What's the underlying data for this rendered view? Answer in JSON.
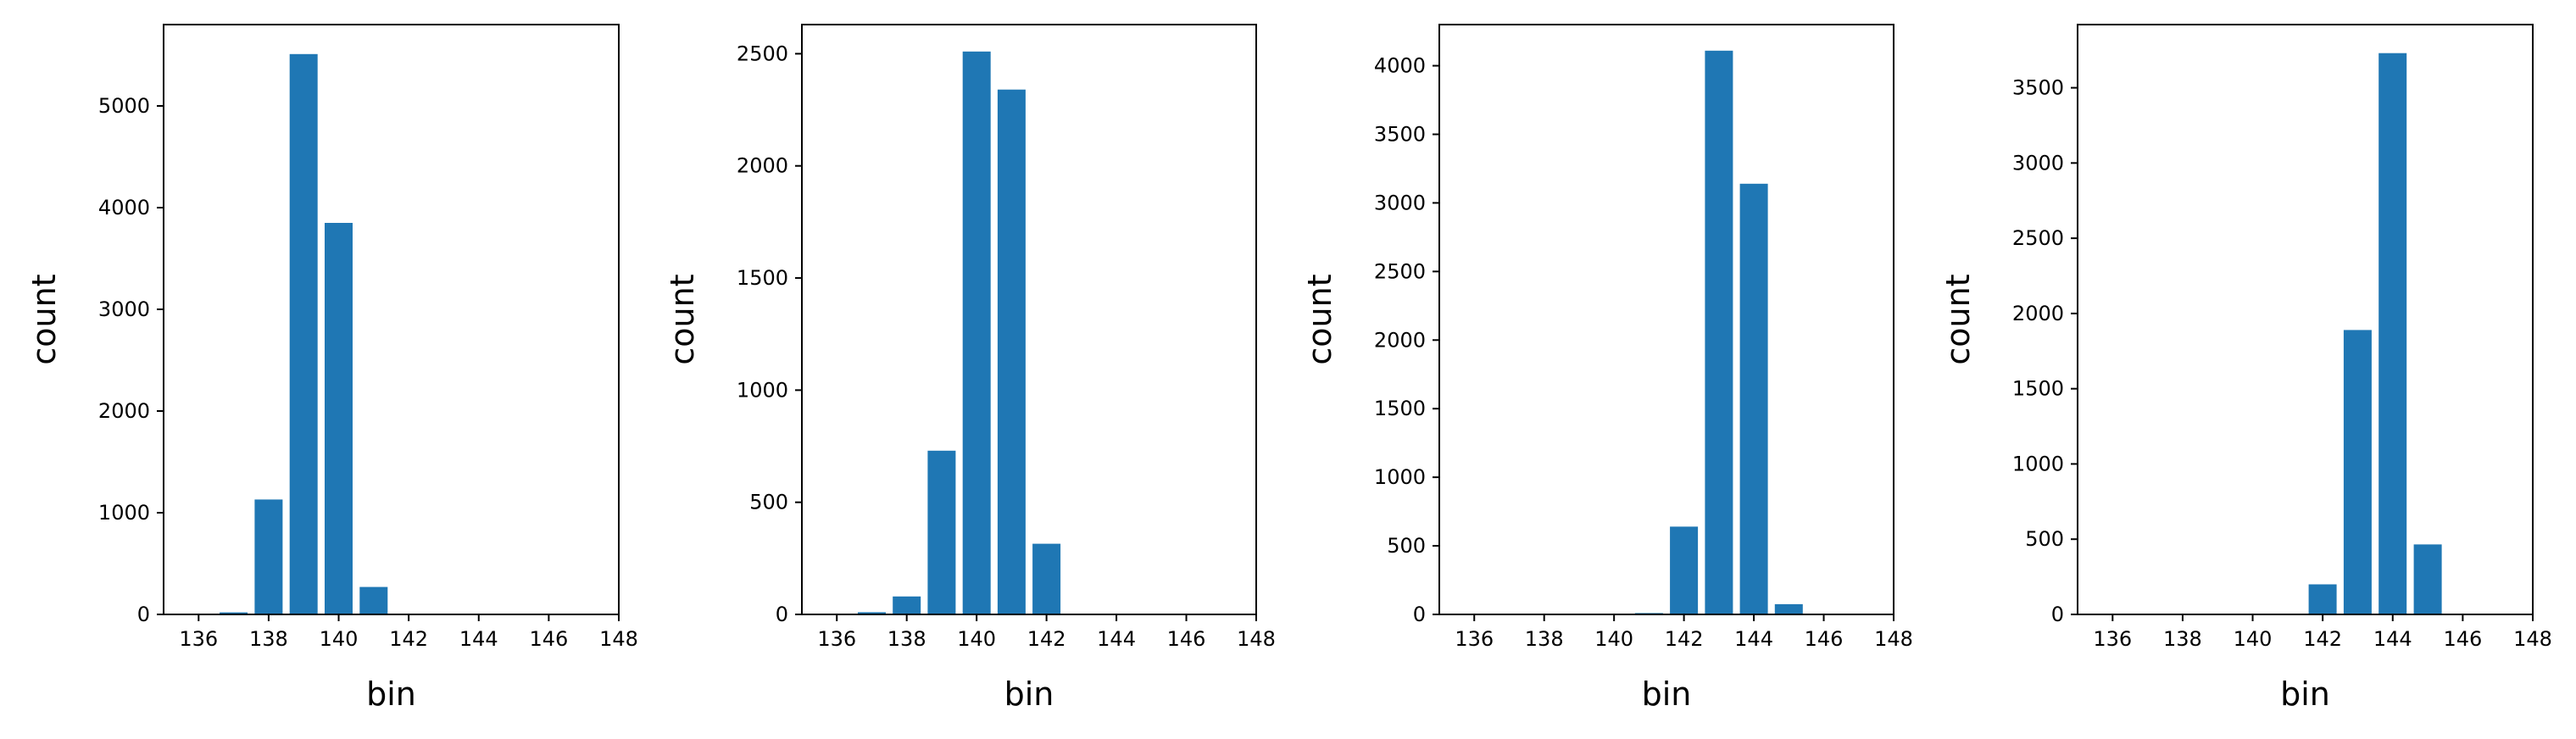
{
  "chart_data": [
    {
      "type": "bar",
      "xlabel": "bin",
      "ylabel": "count",
      "xlim": [
        135,
        148
      ],
      "ylim": [
        0,
        5800
      ],
      "xticks": [
        136,
        138,
        140,
        142,
        144,
        146,
        148
      ],
      "yticks": [
        0,
        1000,
        2000,
        3000,
        4000,
        5000
      ],
      "bar_color": "#1f77b4",
      "x": [
        137,
        138,
        139,
        140,
        141
      ],
      "values": [
        20,
        1130,
        5510,
        3850,
        270
      ]
    },
    {
      "type": "bar",
      "xlabel": "bin",
      "ylabel": "count",
      "xlim": [
        135,
        148
      ],
      "ylim": [
        0,
        2630
      ],
      "xticks": [
        136,
        138,
        140,
        142,
        144,
        146,
        148
      ],
      "yticks": [
        0,
        500,
        1000,
        1500,
        2000,
        2500
      ],
      "bar_color": "#1f77b4",
      "x": [
        137,
        138,
        139,
        140,
        141,
        142
      ],
      "values": [
        10,
        80,
        730,
        2510,
        2340,
        315
      ]
    },
    {
      "type": "bar",
      "xlabel": "bin",
      "ylabel": "count",
      "xlim": [
        135,
        148
      ],
      "ylim": [
        0,
        4300
      ],
      "xticks": [
        136,
        138,
        140,
        142,
        144,
        146,
        148
      ],
      "yticks": [
        0,
        500,
        1000,
        1500,
        2000,
        2500,
        3000,
        3500,
        4000
      ],
      "bar_color": "#1f77b4",
      "x": [
        141,
        142,
        143,
        144,
        145
      ],
      "values": [
        10,
        640,
        4110,
        3140,
        75
      ]
    },
    {
      "type": "bar",
      "xlabel": "bin",
      "ylabel": "count",
      "xlim": [
        135,
        148
      ],
      "ylim": [
        0,
        3920
      ],
      "xticks": [
        136,
        138,
        140,
        142,
        144,
        146,
        148
      ],
      "yticks": [
        0,
        500,
        1000,
        1500,
        2000,
        2500,
        3000,
        3500
      ],
      "bar_color": "#1f77b4",
      "x": [
        142,
        143,
        144,
        145
      ],
      "values": [
        200,
        1890,
        3730,
        465
      ]
    }
  ]
}
